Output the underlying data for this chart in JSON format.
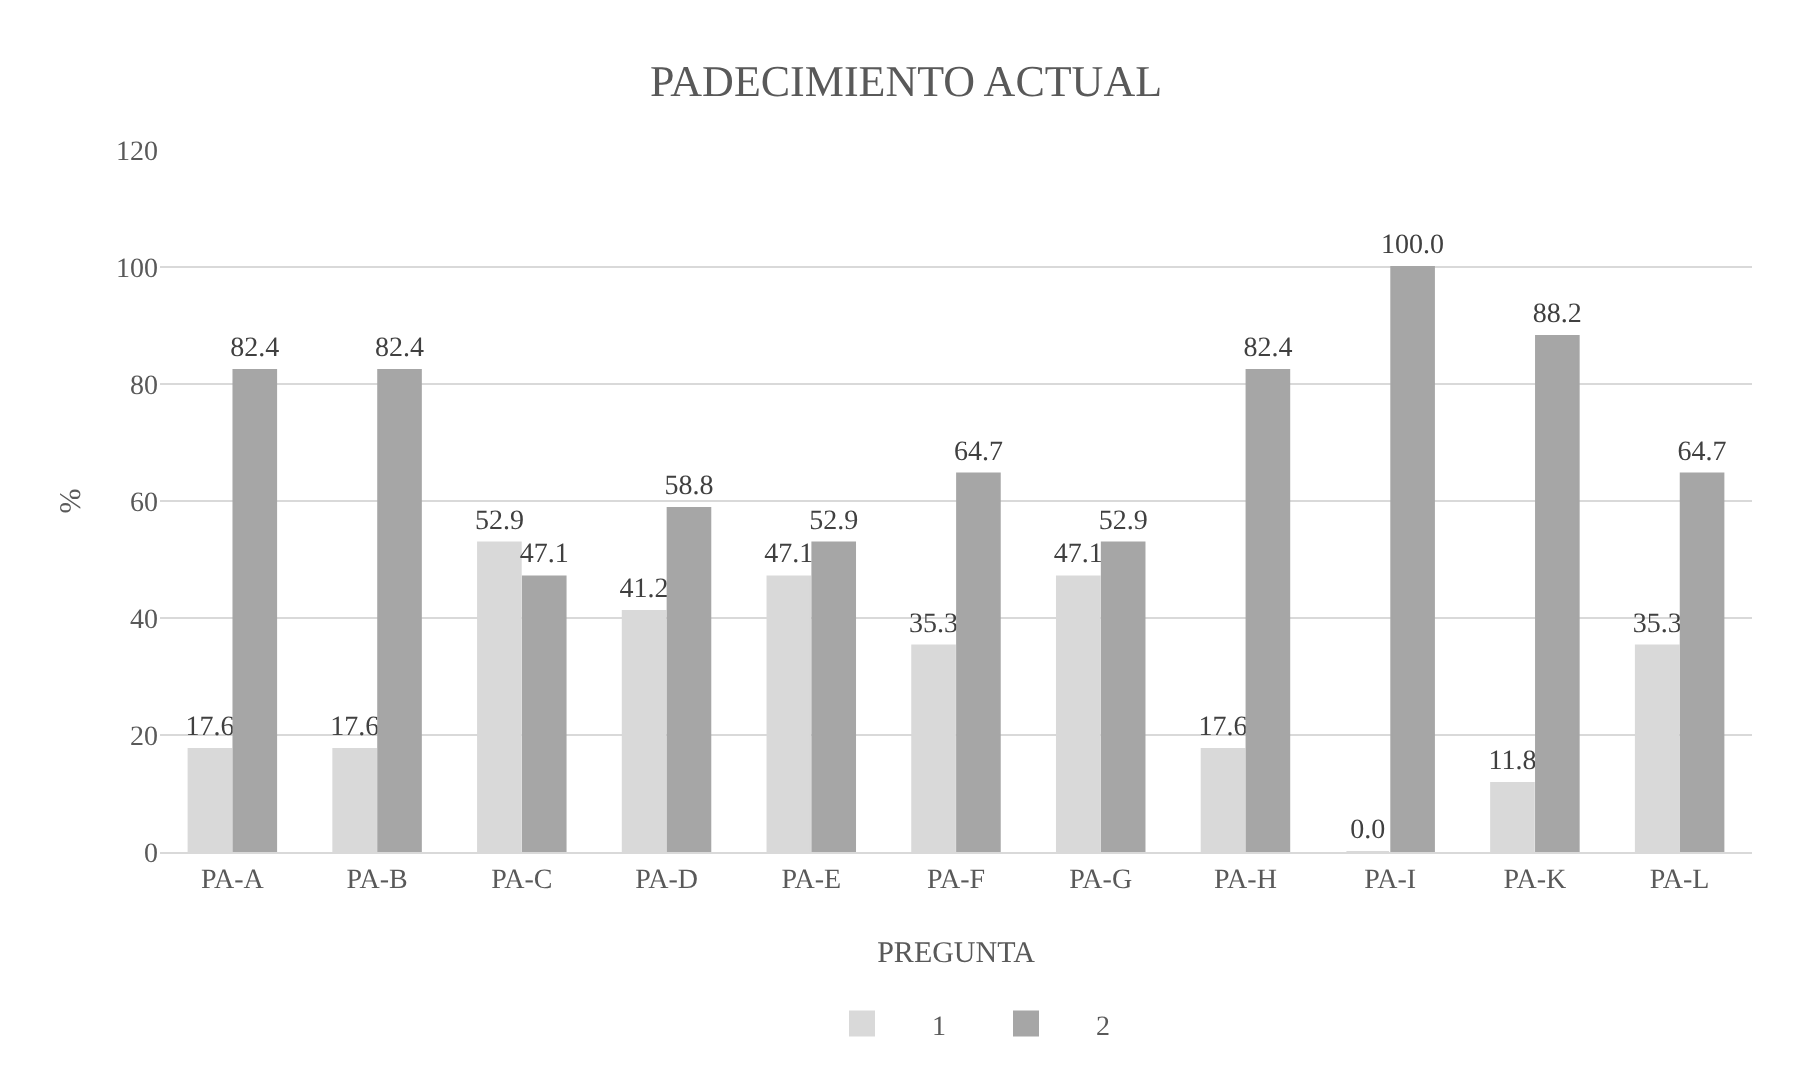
{
  "chart_data": {
    "type": "bar",
    "title": "PADECIMIENTO ACTUAL",
    "xlabel": "PREGUNTA",
    "ylabel": "%",
    "categories": [
      "PA-A",
      "PA-B",
      "PA-C",
      "PA-D",
      "PA-E",
      "PA-F",
      "PA-G",
      "PA-H",
      "PA-I",
      "PA-K",
      "PA-L"
    ],
    "series": [
      {
        "name": "1",
        "color": "#d9d9d9",
        "values": [
          17.6,
          17.6,
          52.9,
          41.2,
          47.1,
          35.3,
          47.1,
          17.6,
          0.0,
          11.8,
          35.3
        ],
        "value_labels": [
          "17.6",
          "17.6",
          "52.9",
          "41.2",
          "47.1",
          "35.3",
          "47.1",
          "17.6",
          "0.0",
          "11.8",
          "35.3"
        ]
      },
      {
        "name": "2",
        "color": "#a6a6a6",
        "values": [
          82.4,
          82.4,
          47.1,
          58.8,
          52.9,
          64.7,
          52.9,
          82.4,
          100.0,
          88.2,
          64.7
        ],
        "value_labels": [
          "82.4",
          "82.4",
          "47.1",
          "58.8",
          "52.9",
          "64.7",
          "52.9",
          "82.4",
          "100.0",
          "88.2",
          "64.7"
        ]
      }
    ],
    "ylim": [
      0,
      120
    ],
    "yticks": [
      0,
      20,
      40,
      60,
      80,
      100,
      120
    ],
    "grid": "y",
    "legend": "bottom"
  }
}
